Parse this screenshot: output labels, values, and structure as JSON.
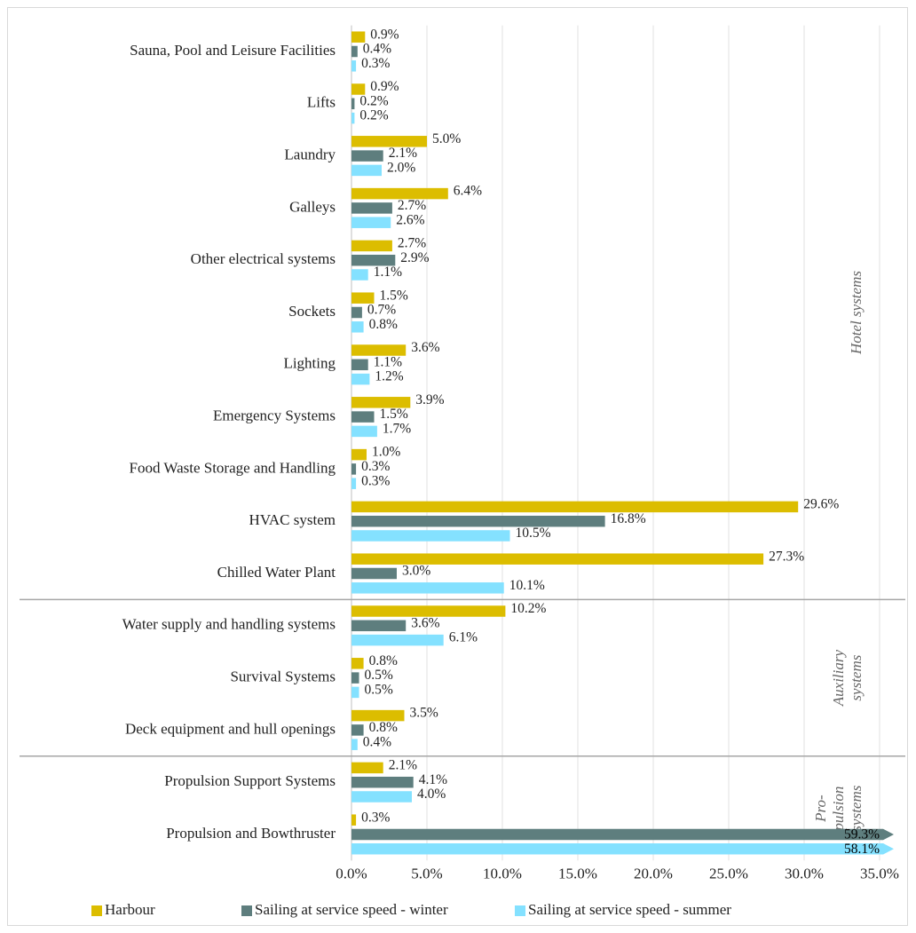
{
  "chart_data": {
    "type": "bar",
    "orientation": "horizontal",
    "groups": [
      {
        "label": [
          "Hotel systems"
        ],
        "categories": [
          "Sauna, Pool and Leisure Facilities",
          "Lifts",
          "Laundry",
          "Galleys",
          "Other electrical systems",
          "Sockets",
          "Lighting",
          "Emergency Systems",
          "Food Waste Storage and Handling",
          "HVAC system",
          "Chilled Water Plant"
        ]
      },
      {
        "label": [
          "Auxiliary",
          "systems"
        ],
        "categories": [
          "Water supply and handling systems",
          "Survival Systems",
          "Deck equipment and hull openings"
        ]
      },
      {
        "label": [
          "Pro-",
          "pulsion",
          "systems"
        ],
        "categories": [
          "Propulsion Support Systems",
          "Propulsion and Bowthruster"
        ]
      }
    ],
    "series": [
      {
        "name": "Harbour",
        "color": "#dcbd00",
        "values": [
          0.9,
          0.9,
          5.0,
          6.4,
          2.7,
          1.5,
          3.6,
          3.9,
          1.0,
          29.6,
          27.3,
          10.2,
          0.8,
          3.5,
          2.1,
          0.3
        ],
        "value_labels": [
          "0.9%",
          "0.9%",
          "5.0%",
          "6.4%",
          "2.7%",
          "1.5%",
          "3.6%",
          "3.9%",
          "1.0%",
          "29.6%",
          "27.3%",
          "10.2%",
          "0.8%",
          "3.5%",
          "2.1%",
          "0.3%"
        ]
      },
      {
        "name": "Sailing at service speed - winter",
        "color": "#5e7e7e",
        "values": [
          0.4,
          0.2,
          2.1,
          2.7,
          2.9,
          0.7,
          1.1,
          1.5,
          0.3,
          16.8,
          3.0,
          3.6,
          0.5,
          0.8,
          4.1,
          59.3
        ],
        "value_labels": [
          "0.4%",
          "0.2%",
          "2.1%",
          "2.7%",
          "2.9%",
          "0.7%",
          "1.1%",
          "1.5%",
          "0.3%",
          "16.8%",
          "3.0%",
          "3.6%",
          "0.5%",
          "0.8%",
          "4.1%",
          "59.3%"
        ]
      },
      {
        "name": "Sailing at service speed - summer",
        "color": "#84e1ff",
        "values": [
          0.3,
          0.2,
          2.0,
          2.6,
          1.1,
          0.8,
          1.2,
          1.7,
          0.3,
          10.5,
          10.1,
          6.1,
          0.5,
          0.4,
          4.0,
          58.1
        ],
        "value_labels": [
          "0.3%",
          "0.2%",
          "2.0%",
          "2.6%",
          "1.1%",
          "0.8%",
          "1.2%",
          "1.7%",
          "0.3%",
          "10.5%",
          "10.1%",
          "6.1%",
          "0.5%",
          "0.4%",
          "4.0%",
          "58.1%"
        ]
      }
    ],
    "xlim": [
      0,
      35
    ],
    "xticks": [
      {
        "value": 0,
        "label": "0.0%"
      },
      {
        "value": 5,
        "label": "5.0%"
      },
      {
        "value": 10,
        "label": "10.0%"
      },
      {
        "value": 15,
        "label": "15.0%"
      },
      {
        "value": 20,
        "label": "20.0%"
      },
      {
        "value": 25,
        "label": "25.0%"
      },
      {
        "value": 30,
        "label": "30.0%"
      },
      {
        "value": 35,
        "label": "35.0%"
      }
    ],
    "grid": true,
    "legend": "bottom"
  }
}
